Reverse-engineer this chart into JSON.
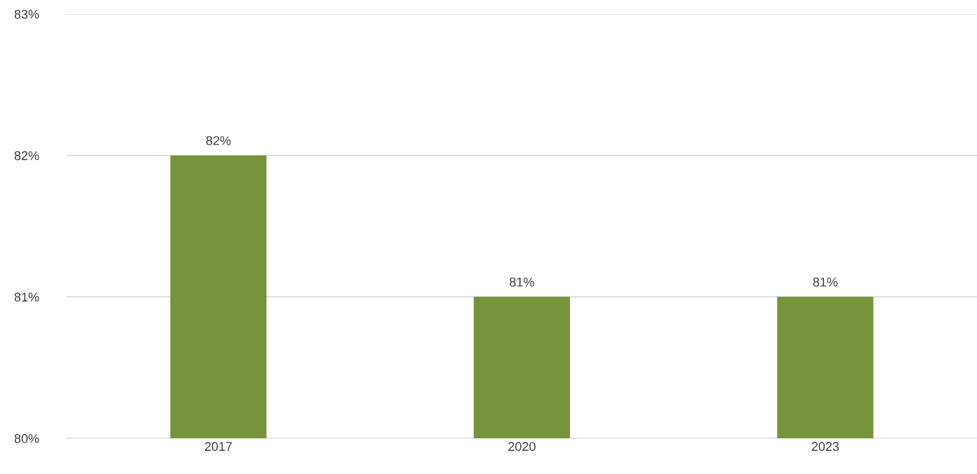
{
  "chart_data": {
    "type": "bar",
    "categories": [
      "2017",
      "2020",
      "2023"
    ],
    "values": [
      82,
      81,
      81
    ],
    "value_labels": [
      "82%",
      "81%",
      "81%"
    ],
    "color": "#77933c",
    "ylim": [
      80,
      83
    ],
    "yticks": [
      {
        "value": 80,
        "label": "80%"
      },
      {
        "value": 81,
        "label": "81%"
      },
      {
        "value": 82,
        "label": "82%"
      },
      {
        "value": 83,
        "label": "83%"
      }
    ],
    "grid": "y"
  }
}
